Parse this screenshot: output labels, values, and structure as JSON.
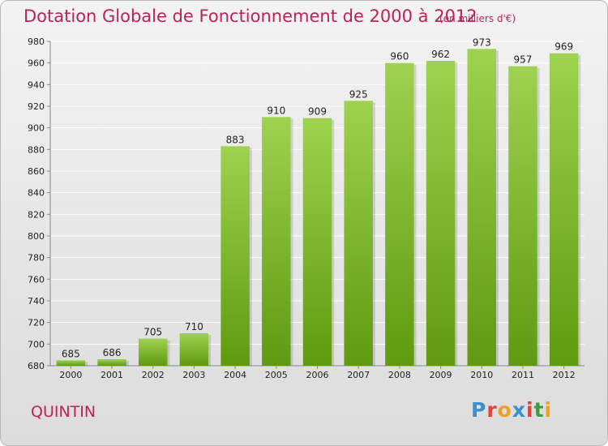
{
  "header": {
    "title": "Dotation Globale de Fonctionnement de 2000 à 2012",
    "unit": "(en milliers d'€)"
  },
  "footer": {
    "city": "QUINTIN",
    "logo": "Proxiti"
  },
  "colors": {
    "title": "#c0205a",
    "bar_top": "#9ed24f",
    "bar_bottom": "#5f9a10",
    "logo_letters": [
      "#3a8fd0",
      "#e0433a",
      "#f0a020",
      "#3a8fd0",
      "#e0433a",
      "#3aa03a",
      "#f0a020"
    ]
  },
  "chart_data": {
    "type": "bar",
    "title": "Dotation Globale de Fonctionnement de 2000 à 2012",
    "subtitle": "(en milliers d'€)",
    "xlabel": "",
    "ylabel": "",
    "categories": [
      "2000",
      "2001",
      "2002",
      "2003",
      "2004",
      "2005",
      "2006",
      "2007",
      "2008",
      "2009",
      "2010",
      "2011",
      "2012"
    ],
    "values": [
      685,
      686,
      705,
      710,
      883,
      910,
      909,
      925,
      960,
      962,
      973,
      957,
      969
    ],
    "ylim": [
      680,
      980
    ],
    "yticks": [
      680,
      700,
      720,
      740,
      760,
      780,
      800,
      820,
      840,
      860,
      880,
      900,
      920,
      940,
      960,
      980
    ],
    "grid": true,
    "data_labels": true
  }
}
